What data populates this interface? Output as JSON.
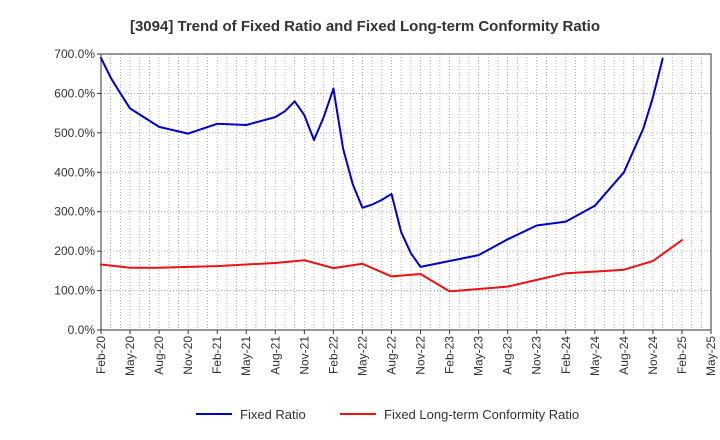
{
  "chart_data": {
    "type": "line",
    "title": "[3094]  Trend of Fixed Ratio and Fixed Long-term Conformity Ratio",
    "xlabel": "",
    "ylabel": "",
    "ylim": [
      0,
      700
    ],
    "yticks": [
      0,
      100,
      200,
      300,
      400,
      500,
      600,
      700
    ],
    "ytick_labels": [
      "0.0%",
      "100.0%",
      "200.0%",
      "300.0%",
      "400.0%",
      "500.0%",
      "600.0%",
      "700.0%"
    ],
    "x_tick_labels": [
      "Feb-20",
      "May-20",
      "Aug-20",
      "Nov-20",
      "Feb-21",
      "May-21",
      "Aug-21",
      "Nov-21",
      "Feb-22",
      "May-22",
      "Aug-22",
      "Nov-22",
      "Feb-23",
      "May-23",
      "Aug-23",
      "Nov-23",
      "Feb-24",
      "May-24",
      "Aug-24",
      "Nov-24",
      "Feb-25",
      "May-25"
    ],
    "x_range_months": [
      0,
      63
    ],
    "grid": true,
    "legend_position": "bottom",
    "series": [
      {
        "name": "Fixed Ratio",
        "color": "#0000cc",
        "x": [
          0,
          1,
          2,
          3,
          6,
          9,
          12,
          15,
          18,
          19,
          20,
          21,
          22,
          23,
          24,
          25,
          26,
          27,
          28,
          29,
          30,
          31,
          32,
          33,
          36,
          39,
          42,
          45,
          48,
          51,
          54,
          55,
          56,
          57,
          58,
          59,
          60
        ],
        "values": [
          690,
          640,
          600,
          562,
          515,
          498,
          523,
          520,
          540,
          555,
          580,
          545,
          482,
          540,
          612,
          460,
          370,
          310,
          318,
          330,
          345,
          248,
          195,
          160,
          175,
          190,
          230,
          265,
          275,
          315,
          400,
          455,
          510,
          590,
          688,
          null,
          null
        ]
      },
      {
        "name": "Fixed Long-term Conformity Ratio",
        "color": "#ee1111",
        "x": [
          0,
          3,
          6,
          9,
          12,
          15,
          18,
          21,
          24,
          27,
          30,
          33,
          36,
          39,
          42,
          45,
          48,
          51,
          54,
          57,
          60
        ],
        "values": [
          166,
          158,
          158,
          160,
          162,
          166,
          170,
          177,
          157,
          168,
          136,
          142,
          98,
          104,
          110,
          127,
          144,
          148,
          153,
          175,
          228
        ]
      }
    ]
  }
}
